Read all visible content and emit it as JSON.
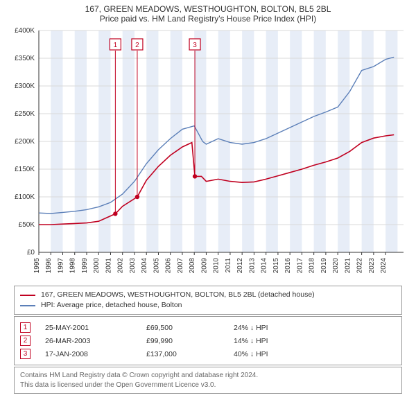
{
  "title": {
    "line1": "167, GREEN MEADOWS, WESTHOUGHTON, BOLTON, BL5 2BL",
    "line2": "Price paid vs. HM Land Registry's House Price Index (HPI)"
  },
  "chart": {
    "type": "line",
    "background_color": "#ffffff",
    "grid_color": "#d9d9d9",
    "axis_color": "#333333",
    "vband_color": "#e7edf7",
    "vband_alt_color": "#ffffff",
    "y": {
      "min": 0,
      "max": 400000,
      "tick_step": 50000,
      "label_prefix": "£",
      "label_suffix": "K"
    },
    "x": {
      "min": 1995,
      "max": 2025.5,
      "ticks": [
        1995,
        1996,
        1997,
        1998,
        1999,
        2000,
        2001,
        2002,
        2003,
        2004,
        2005,
        2006,
        2007,
        2008,
        2009,
        2010,
        2011,
        2012,
        2013,
        2014,
        2015,
        2016,
        2017,
        2018,
        2019,
        2020,
        2021,
        2022,
        2023,
        2024
      ]
    },
    "series": [
      {
        "id": "property",
        "color": "#c00020",
        "width": 1.6,
        "points": [
          [
            1995,
            50000
          ],
          [
            1996,
            50000
          ],
          [
            1997,
            51000
          ],
          [
            1998,
            52000
          ],
          [
            1999,
            53000
          ],
          [
            2000,
            56000
          ],
          [
            2001.4,
            69500
          ],
          [
            2002,
            83000
          ],
          [
            2003.23,
            99990
          ],
          [
            2004,
            130000
          ],
          [
            2005,
            155000
          ],
          [
            2006,
            175000
          ],
          [
            2007,
            190000
          ],
          [
            2007.8,
            198000
          ],
          [
            2008.05,
            137000
          ],
          [
            2008.6,
            137000
          ],
          [
            2009,
            128000
          ],
          [
            2010,
            132000
          ],
          [
            2011,
            128000
          ],
          [
            2012,
            126000
          ],
          [
            2013,
            127000
          ],
          [
            2014,
            132000
          ],
          [
            2015,
            138000
          ],
          [
            2016,
            144000
          ],
          [
            2017,
            150000
          ],
          [
            2018,
            157000
          ],
          [
            2019,
            163000
          ],
          [
            2020,
            170000
          ],
          [
            2021,
            182000
          ],
          [
            2022,
            198000
          ],
          [
            2023,
            206000
          ],
          [
            2024,
            210000
          ],
          [
            2024.7,
            212000
          ]
        ]
      },
      {
        "id": "hpi",
        "color": "#5b7fb8",
        "width": 1.4,
        "points": [
          [
            1995,
            71000
          ],
          [
            1996,
            70000
          ],
          [
            1997,
            72000
          ],
          [
            1998,
            74000
          ],
          [
            1999,
            77000
          ],
          [
            2000,
            82000
          ],
          [
            2001,
            90000
          ],
          [
            2002,
            105000
          ],
          [
            2003,
            128000
          ],
          [
            2004,
            160000
          ],
          [
            2005,
            185000
          ],
          [
            2006,
            205000
          ],
          [
            2007,
            222000
          ],
          [
            2008,
            228000
          ],
          [
            2008.7,
            200000
          ],
          [
            2009,
            195000
          ],
          [
            2010,
            205000
          ],
          [
            2011,
            198000
          ],
          [
            2012,
            195000
          ],
          [
            2013,
            198000
          ],
          [
            2014,
            205000
          ],
          [
            2015,
            215000
          ],
          [
            2016,
            225000
          ],
          [
            2017,
            235000
          ],
          [
            2018,
            245000
          ],
          [
            2019,
            253000
          ],
          [
            2020,
            262000
          ],
          [
            2021,
            290000
          ],
          [
            2022,
            328000
          ],
          [
            2023,
            335000
          ],
          [
            2024,
            348000
          ],
          [
            2024.7,
            352000
          ]
        ]
      }
    ],
    "sale_markers": [
      {
        "n": "1",
        "x": 2001.4,
        "y": 69500,
        "flag_y": 375000
      },
      {
        "n": "2",
        "x": 2003.23,
        "y": 99990,
        "flag_y": 375000
      },
      {
        "n": "3",
        "x": 2008.05,
        "y": 137000,
        "flag_y": 375000
      }
    ],
    "marker_radius": 3.2
  },
  "legend": {
    "items": [
      {
        "color": "#c00020",
        "label": "167, GREEN MEADOWS, WESTHOUGHTON, BOLTON, BL5 2BL (detached house)"
      },
      {
        "color": "#5b7fb8",
        "label": "HPI: Average price, detached house, Bolton"
      }
    ]
  },
  "sales": [
    {
      "n": "1",
      "date": "25-MAY-2001",
      "price": "£69,500",
      "delta": "24% ↓ HPI"
    },
    {
      "n": "2",
      "date": "26-MAR-2003",
      "price": "£99,990",
      "delta": "14% ↓ HPI"
    },
    {
      "n": "3",
      "date": "17-JAN-2008",
      "price": "£137,000",
      "delta": "40% ↓ HPI"
    }
  ],
  "credits": {
    "line1": "Contains HM Land Registry data © Crown copyright and database right 2024.",
    "line2": "This data is licensed under the Open Government Licence v3.0."
  }
}
